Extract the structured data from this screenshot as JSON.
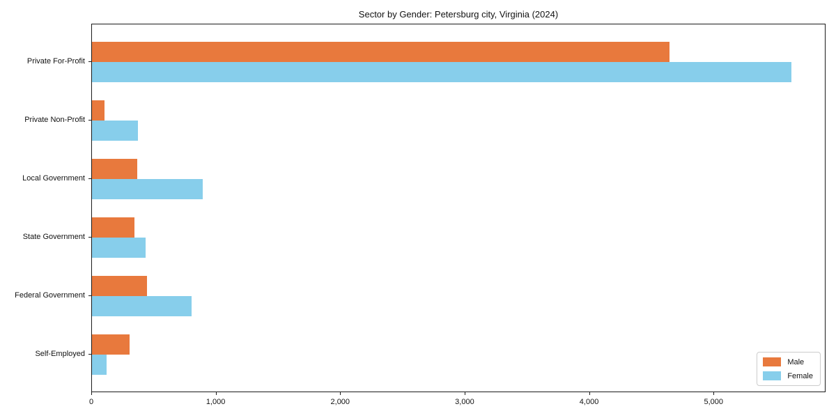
{
  "chart_data": {
    "type": "bar",
    "orientation": "horizontal",
    "title": "Sector by Gender: Petersburg city, Virginia (2024)",
    "categories": [
      "Private For-Profit",
      "Private Non-Profit",
      "Local Government",
      "State Government",
      "Federal Government",
      "Self-Employed"
    ],
    "series": [
      {
        "name": "Male",
        "color": "#e8793d",
        "values": [
          4640,
          100,
          365,
          340,
          445,
          300
        ]
      },
      {
        "name": "Female",
        "color": "#87ceeb",
        "values": [
          5620,
          370,
          890,
          430,
          800,
          120
        ]
      }
    ],
    "xlabel": "",
    "ylabel": "",
    "xlim": [
      0,
      5900
    ],
    "x_ticks": [
      {
        "value": 0,
        "label": "0"
      },
      {
        "value": 1000,
        "label": "1,000"
      },
      {
        "value": 2000,
        "label": "2,000"
      },
      {
        "value": 3000,
        "label": "3,000"
      },
      {
        "value": 4000,
        "label": "4,000"
      },
      {
        "value": 5000,
        "label": "5,000"
      }
    ],
    "grid": false,
    "legend": {
      "position": "lower right",
      "items": [
        "Male",
        "Female"
      ]
    }
  }
}
